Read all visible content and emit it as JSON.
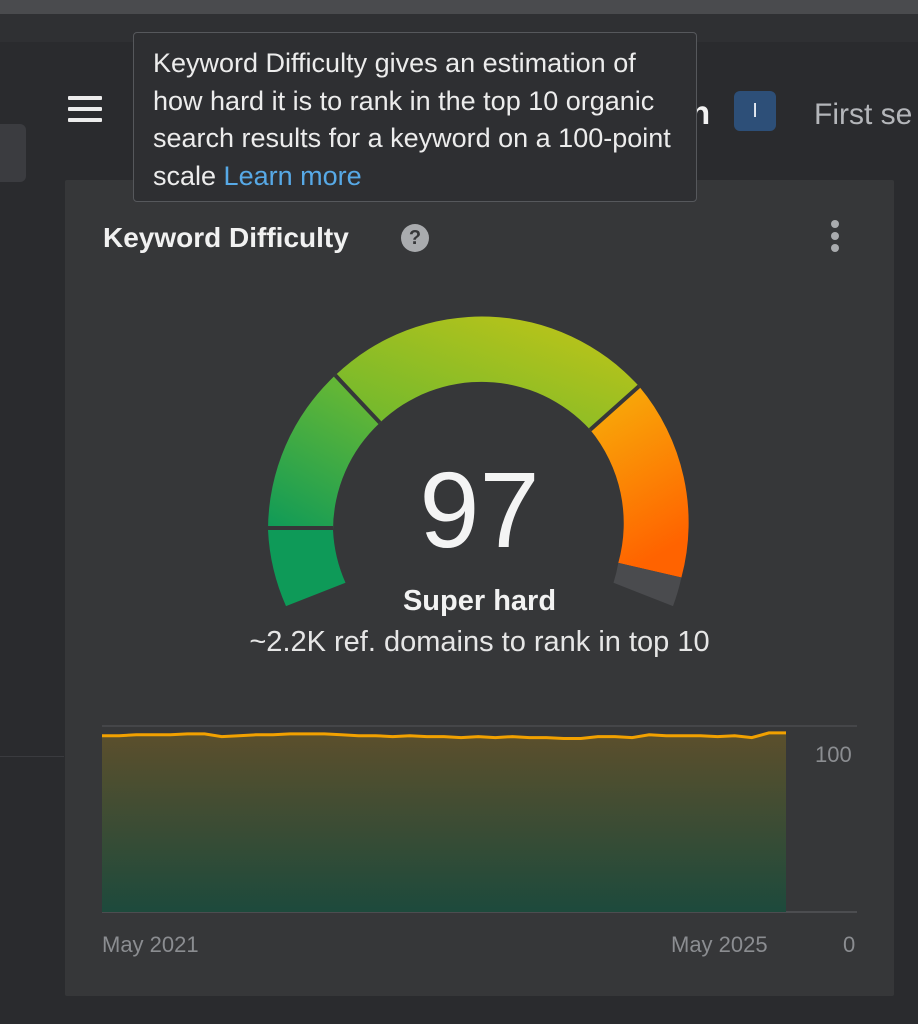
{
  "background": {
    "heading_fragment": "h",
    "badge": "I",
    "first_fragment": "First se"
  },
  "tooltip": {
    "text": "Keyword Difficulty gives an estimation of how hard it is to rank in the top 10 organic search results for a keyword on a 100-point scale",
    "link": "Learn more"
  },
  "card": {
    "title": "Keyword Difficulty",
    "help_icon": "question-circle-icon",
    "menu_icon": "kebab-vertical-icon"
  },
  "gauge": {
    "score": "97",
    "score_value": 97,
    "max_value": 100,
    "level": "Super hard",
    "ref_domains": "~2.2K ref. domains to rank in top 10",
    "colors": [
      "#0e9a58",
      "#63b733",
      "#b9c41a",
      "#e9c010",
      "#ff6a00",
      "#4a4b4e"
    ]
  },
  "chart_data": {
    "type": "area",
    "xlabel": "",
    "ylabel": "",
    "x_tick_labels": [
      "May 2021",
      "May 2025"
    ],
    "y_tick_labels": [
      "100",
      "0"
    ],
    "ylim": [
      0,
      100
    ],
    "line_color": "#f2a100",
    "series": [
      {
        "values": [
          98,
          98,
          98.5,
          98.5,
          98.5,
          99,
          99,
          97.5,
          98,
          98.5,
          98.5,
          99,
          99,
          99,
          98.5,
          98,
          98,
          97.5,
          98,
          97.5,
          97.5,
          97,
          97.5,
          97,
          97.5,
          97,
          97,
          96.5,
          96.5,
          97.5,
          97.5,
          97,
          98.5,
          98,
          98,
          98,
          97.5,
          98,
          97,
          99.5,
          99.5
        ]
      }
    ]
  }
}
